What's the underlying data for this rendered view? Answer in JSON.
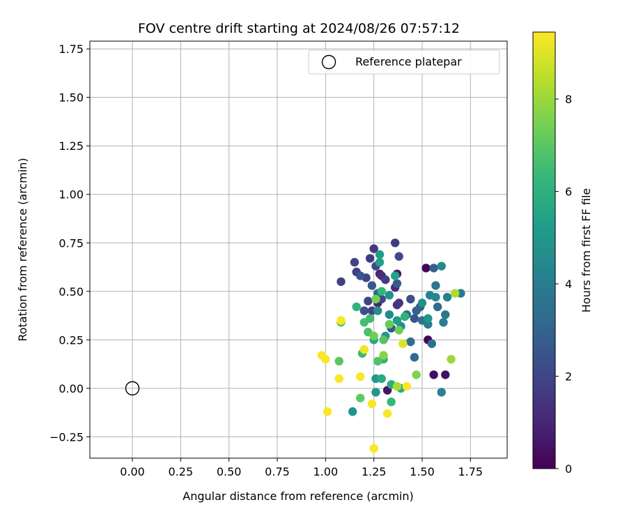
{
  "chart_data": {
    "type": "scatter",
    "title": "FOV centre drift starting at 2024/08/26 07:57:12",
    "xlabel": "Angular distance from reference (arcmin)",
    "ylabel": "Rotation from reference (arcmin)",
    "xlim": [
      -0.22,
      1.94
    ],
    "ylim": [
      -0.36,
      1.79
    ],
    "xticks": [
      0.0,
      0.25,
      0.5,
      0.75,
      1.0,
      1.25,
      1.5,
      1.75
    ],
    "xtick_labels": [
      "0.00",
      "0.25",
      "0.50",
      "0.75",
      "1.00",
      "1.25",
      "1.50",
      "1.75"
    ],
    "yticks": [
      -0.25,
      0.0,
      0.25,
      0.5,
      0.75,
      1.0,
      1.25,
      1.5,
      1.75
    ],
    "ytick_labels": [
      "−0.25",
      "0.00",
      "0.25",
      "0.50",
      "0.75",
      "1.00",
      "1.25",
      "1.50",
      "1.75"
    ],
    "grid": true,
    "legend_position": "top-right",
    "legend": [
      {
        "label": "Reference platepar",
        "marker": "open-circle"
      }
    ],
    "reference_point": {
      "x": 0.0,
      "y": 0.0
    },
    "colorbar": {
      "label": "Hours from first FF file",
      "colormap": "viridis",
      "range": [
        0,
        9.45
      ],
      "ticks": [
        0,
        2,
        4,
        6,
        8
      ],
      "tick_labels": [
        "0",
        "2",
        "4",
        "6",
        "8"
      ]
    },
    "colormap_stops": [
      "#440154",
      "#482878",
      "#3e4989",
      "#31688e",
      "#26828e",
      "#1f9e89",
      "#35b779",
      "#6ece58",
      "#b5de2b",
      "#fde725"
    ],
    "points": [
      {
        "x": 1.52,
        "y": 0.62,
        "h": 0.1
      },
      {
        "x": 1.53,
        "y": 0.25,
        "h": 0.2
      },
      {
        "x": 1.56,
        "y": 0.07,
        "h": 0.3
      },
      {
        "x": 1.62,
        "y": 0.07,
        "h": 0.4
      },
      {
        "x": 1.32,
        "y": -0.01,
        "h": 0.5
      },
      {
        "x": 1.37,
        "y": 0.59,
        "h": 0.6
      },
      {
        "x": 1.28,
        "y": 0.59,
        "h": 0.8
      },
      {
        "x": 1.27,
        "y": 0.44,
        "h": 1.0
      },
      {
        "x": 1.36,
        "y": 0.52,
        "h": 1.1
      },
      {
        "x": 1.29,
        "y": 0.58,
        "h": 1.2
      },
      {
        "x": 1.37,
        "y": 0.43,
        "h": 1.4
      },
      {
        "x": 1.38,
        "y": 0.44,
        "h": 1.5
      },
      {
        "x": 1.25,
        "y": 0.72,
        "h": 1.5
      },
      {
        "x": 1.23,
        "y": 0.67,
        "h": 1.6
      },
      {
        "x": 1.31,
        "y": 0.56,
        "h": 1.7
      },
      {
        "x": 1.36,
        "y": 0.75,
        "h": 1.7
      },
      {
        "x": 1.08,
        "y": 0.55,
        "h": 1.8
      },
      {
        "x": 1.16,
        "y": 0.6,
        "h": 1.8
      },
      {
        "x": 1.22,
        "y": 0.45,
        "h": 1.9
      },
      {
        "x": 1.24,
        "y": 0.4,
        "h": 1.9
      },
      {
        "x": 1.15,
        "y": 0.65,
        "h": 2.0
      },
      {
        "x": 1.21,
        "y": 0.57,
        "h": 2.0
      },
      {
        "x": 1.26,
        "y": 0.63,
        "h": 2.1
      },
      {
        "x": 1.29,
        "y": 0.46,
        "h": 2.1
      },
      {
        "x": 1.38,
        "y": 0.68,
        "h": 2.2
      },
      {
        "x": 1.44,
        "y": 0.46,
        "h": 2.3
      },
      {
        "x": 1.2,
        "y": 0.4,
        "h": 2.3
      },
      {
        "x": 1.34,
        "y": 0.31,
        "h": 2.4
      },
      {
        "x": 1.46,
        "y": 0.36,
        "h": 2.5
      },
      {
        "x": 1.18,
        "y": 0.58,
        "h": 2.6
      },
      {
        "x": 1.24,
        "y": 0.53,
        "h": 2.6
      },
      {
        "x": 1.37,
        "y": 0.54,
        "h": 2.7
      },
      {
        "x": 1.49,
        "y": 0.42,
        "h": 2.8
      },
      {
        "x": 1.56,
        "y": 0.62,
        "h": 2.9
      },
      {
        "x": 1.47,
        "y": 0.4,
        "h": 3.0
      },
      {
        "x": 1.27,
        "y": 0.49,
        "h": 3.1
      },
      {
        "x": 1.42,
        "y": 0.38,
        "h": 3.2
      },
      {
        "x": 1.58,
        "y": 0.42,
        "h": 3.3
      },
      {
        "x": 1.46,
        "y": 0.16,
        "h": 3.3
      },
      {
        "x": 1.44,
        "y": 0.24,
        "h": 3.4
      },
      {
        "x": 1.55,
        "y": 0.23,
        "h": 3.5
      },
      {
        "x": 1.5,
        "y": 0.35,
        "h": 3.6
      },
      {
        "x": 1.57,
        "y": 0.53,
        "h": 3.7
      },
      {
        "x": 1.62,
        "y": 0.38,
        "h": 3.8
      },
      {
        "x": 1.61,
        "y": 0.34,
        "h": 3.9
      },
      {
        "x": 1.7,
        "y": 0.49,
        "h": 4.0
      },
      {
        "x": 1.53,
        "y": 0.33,
        "h": 4.0
      },
      {
        "x": 1.63,
        "y": 0.47,
        "h": 4.1
      },
      {
        "x": 1.6,
        "y": -0.02,
        "h": 4.2
      },
      {
        "x": 1.54,
        "y": 0.48,
        "h": 4.3
      },
      {
        "x": 1.57,
        "y": 0.47,
        "h": 4.4
      },
      {
        "x": 1.6,
        "y": 0.63,
        "h": 4.5
      },
      {
        "x": 1.33,
        "y": 0.38,
        "h": 4.5
      },
      {
        "x": 1.39,
        "y": 0.32,
        "h": 4.6
      },
      {
        "x": 1.27,
        "y": 0.4,
        "h": 4.7
      },
      {
        "x": 1.33,
        "y": 0.48,
        "h": 4.8
      },
      {
        "x": 1.5,
        "y": 0.44,
        "h": 4.8
      },
      {
        "x": 1.53,
        "y": 0.36,
        "h": 4.9
      },
      {
        "x": 1.14,
        "y": -0.12,
        "h": 4.9
      },
      {
        "x": 1.26,
        "y": -0.02,
        "h": 5.0
      },
      {
        "x": 1.26,
        "y": 0.05,
        "h": 5.1
      },
      {
        "x": 1.31,
        "y": 0.27,
        "h": 5.1
      },
      {
        "x": 1.37,
        "y": 0.35,
        "h": 5.2
      },
      {
        "x": 1.28,
        "y": 0.69,
        "h": 5.3
      },
      {
        "x": 1.28,
        "y": 0.65,
        "h": 5.4
      },
      {
        "x": 1.36,
        "y": 0.58,
        "h": 5.5
      },
      {
        "x": 1.25,
        "y": 0.25,
        "h": 5.6
      },
      {
        "x": 1.29,
        "y": 0.05,
        "h": 5.7
      },
      {
        "x": 1.34,
        "y": 0.02,
        "h": 5.8
      },
      {
        "x": 1.39,
        "y": 0.0,
        "h": 5.9
      },
      {
        "x": 1.3,
        "y": 0.15,
        "h": 6.0
      },
      {
        "x": 1.41,
        "y": 0.37,
        "h": 6.0
      },
      {
        "x": 1.16,
        "y": 0.42,
        "h": 6.1
      },
      {
        "x": 1.29,
        "y": 0.5,
        "h": 6.2
      },
      {
        "x": 1.34,
        "y": -0.07,
        "h": 6.3
      },
      {
        "x": 1.19,
        "y": 0.18,
        "h": 6.4
      },
      {
        "x": 1.23,
        "y": 0.36,
        "h": 6.5
      },
      {
        "x": 1.2,
        "y": 0.34,
        "h": 6.6
      },
      {
        "x": 1.22,
        "y": 0.29,
        "h": 6.7
      },
      {
        "x": 1.27,
        "y": 0.14,
        "h": 6.8
      },
      {
        "x": 1.3,
        "y": 0.25,
        "h": 6.9
      },
      {
        "x": 1.07,
        "y": 0.14,
        "h": 7.0
      },
      {
        "x": 1.08,
        "y": 0.34,
        "h": 7.0
      },
      {
        "x": 1.18,
        "y": -0.05,
        "h": 7.1
      },
      {
        "x": 1.33,
        "y": 0.33,
        "h": 7.2
      },
      {
        "x": 1.38,
        "y": 0.3,
        "h": 7.3
      },
      {
        "x": 1.25,
        "y": 0.27,
        "h": 7.4
      },
      {
        "x": 1.26,
        "y": 0.46,
        "h": 7.5
      },
      {
        "x": 1.47,
        "y": 0.07,
        "h": 7.6
      },
      {
        "x": 1.3,
        "y": 0.17,
        "h": 7.7
      },
      {
        "x": 1.65,
        "y": 0.15,
        "h": 8.0
      },
      {
        "x": 1.37,
        "y": 0.01,
        "h": 8.2
      },
      {
        "x": 1.67,
        "y": 0.49,
        "h": 8.3
      },
      {
        "x": 1.4,
        "y": 0.23,
        "h": 9.0
      },
      {
        "x": 1.2,
        "y": 0.2,
        "h": 9.2
      },
      {
        "x": 1.08,
        "y": 0.35,
        "h": 9.4
      },
      {
        "x": 0.98,
        "y": 0.17,
        "h": 9.4
      },
      {
        "x": 1.0,
        "y": 0.15,
        "h": 9.4
      },
      {
        "x": 1.01,
        "y": -0.12,
        "h": 9.4
      },
      {
        "x": 1.07,
        "y": 0.05,
        "h": 9.4
      },
      {
        "x": 1.18,
        "y": 0.06,
        "h": 9.4
      },
      {
        "x": 1.24,
        "y": -0.08,
        "h": 9.4
      },
      {
        "x": 1.25,
        "y": -0.31,
        "h": 9.4
      },
      {
        "x": 1.32,
        "y": -0.13,
        "h": 9.4
      },
      {
        "x": 1.42,
        "y": 0.01,
        "h": 9.4
      }
    ]
  }
}
